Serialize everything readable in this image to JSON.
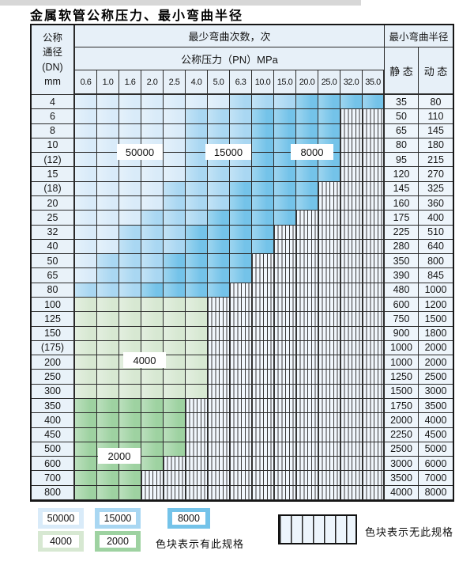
{
  "title": "金属软管公称压力、最小弯曲半径",
  "colors": {
    "c50000": "#d9ebf9",
    "c15000": "#a9d7f2",
    "c8000": "#74c3e9",
    "c4000": "#d7e8d2",
    "c2000": "#9ed2a1"
  },
  "table": {
    "header": {
      "dn_line1": "公称",
      "dn_line2": "通径",
      "dn_line3": "(DN)",
      "dn_line4": "mm",
      "bend_times_label": "最少弯曲次数，次",
      "pressure_label": "公称压力（PN）MPa",
      "radius_label": "最小弯曲半径",
      "static_label": "静 态",
      "dynamic_label": "动 态",
      "pressure_columns": [
        "0.6",
        "1.0",
        "1.6",
        "2.0",
        "2.5",
        "4.0",
        "5.0",
        "6.3",
        "10.0",
        "15.0",
        "20.0",
        "25.0",
        "32.0",
        "35.0"
      ]
    },
    "zone_labels": [
      {
        "text": "50000"
      },
      {
        "text": "15000"
      },
      {
        "text": "8000"
      },
      {
        "text": "4000"
      },
      {
        "text": "2000"
      }
    ],
    "rows": [
      {
        "dn": "4",
        "pn_cols": 14,
        "group": "blue",
        "static": "35",
        "dynamic": "80"
      },
      {
        "dn": "6",
        "pn_cols": 12,
        "group": "blue",
        "static": "50",
        "dynamic": "110"
      },
      {
        "dn": "8",
        "pn_cols": 12,
        "group": "blue",
        "static": "65",
        "dynamic": "145"
      },
      {
        "dn": "10",
        "pn_cols": 12,
        "group": "blue",
        "static": "80",
        "dynamic": "180"
      },
      {
        "dn": "(12)",
        "pn_cols": 12,
        "group": "blue",
        "static": "95",
        "dynamic": "215"
      },
      {
        "dn": "15",
        "pn_cols": 12,
        "group": "blue",
        "static": "120",
        "dynamic": "270"
      },
      {
        "dn": "(18)",
        "pn_cols": 11,
        "group": "blue",
        "static": "145",
        "dynamic": "325"
      },
      {
        "dn": "20",
        "pn_cols": 11,
        "group": "blue",
        "static": "160",
        "dynamic": "360"
      },
      {
        "dn": "25",
        "pn_cols": 10,
        "group": "blue",
        "static": "175",
        "dynamic": "400"
      },
      {
        "dn": "32",
        "pn_cols": 9,
        "group": "blue",
        "static": "225",
        "dynamic": "510"
      },
      {
        "dn": "40",
        "pn_cols": 9,
        "group": "blue",
        "static": "280",
        "dynamic": "640"
      },
      {
        "dn": "50",
        "pn_cols": 8,
        "group": "blue",
        "static": "350",
        "dynamic": "800"
      },
      {
        "dn": "65",
        "pn_cols": 8,
        "group": "blue",
        "static": "390",
        "dynamic": "845"
      },
      {
        "dn": "80",
        "pn_cols": 7,
        "group": "blue",
        "static": "480",
        "dynamic": "1000"
      },
      {
        "dn": "100",
        "pn_cols": 6,
        "group": "green4",
        "static": "600",
        "dynamic": "1200"
      },
      {
        "dn": "125",
        "pn_cols": 6,
        "group": "green4",
        "static": "750",
        "dynamic": "1500"
      },
      {
        "dn": "150",
        "pn_cols": 6,
        "group": "green4",
        "static": "900",
        "dynamic": "1800"
      },
      {
        "dn": "(175)",
        "pn_cols": 6,
        "group": "green4",
        "static": "1000",
        "dynamic": "2000"
      },
      {
        "dn": "200",
        "pn_cols": 6,
        "group": "green4",
        "static": "1000",
        "dynamic": "2000"
      },
      {
        "dn": "250",
        "pn_cols": 6,
        "group": "green4",
        "static": "1250",
        "dynamic": "2500"
      },
      {
        "dn": "300",
        "pn_cols": 6,
        "group": "green4",
        "static": "1500",
        "dynamic": "3000"
      },
      {
        "dn": "350",
        "pn_cols": 5,
        "group": "green2",
        "static": "1750",
        "dynamic": "3500"
      },
      {
        "dn": "400",
        "pn_cols": 5,
        "group": "green2",
        "static": "2000",
        "dynamic": "4000"
      },
      {
        "dn": "450",
        "pn_cols": 5,
        "group": "green2",
        "static": "2250",
        "dynamic": "4500"
      },
      {
        "dn": "500",
        "pn_cols": 5,
        "group": "green2",
        "static": "2500",
        "dynamic": "5000"
      },
      {
        "dn": "600",
        "pn_cols": 4,
        "group": "green2",
        "static": "3000",
        "dynamic": "6000"
      },
      {
        "dn": "700",
        "pn_cols": 3,
        "group": "green2",
        "static": "3500",
        "dynamic": "7000"
      },
      {
        "dn": "800",
        "pn_cols": 3,
        "group": "green2",
        "static": "4000",
        "dynamic": "8000"
      }
    ]
  },
  "legend": {
    "available_label": "色块表示有此规格",
    "unavailable_label": "色块表示无此规格",
    "swatches": [
      {
        "value": "50000",
        "color_key": "c50000"
      },
      {
        "value": "15000",
        "color_key": "c15000"
      },
      {
        "value": "8000",
        "color_key": "c8000"
      },
      {
        "value": "4000",
        "color_key": "c4000"
      },
      {
        "value": "2000",
        "color_key": "c2000"
      }
    ]
  }
}
